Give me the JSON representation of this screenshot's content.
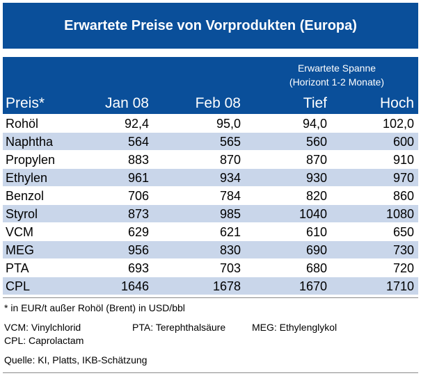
{
  "title": "Erwartete Preise von Vorprodukten (Europa)",
  "header": {
    "range_line1": "Erwartete Spanne",
    "range_line2": "(Horizont 1-2 Monate)",
    "col_name": "Preis*",
    "col_jan": "Jan 08",
    "col_feb": "Feb 08",
    "col_low": "Tief",
    "col_high": "Hoch"
  },
  "rows": [
    {
      "name": "Rohöl",
      "jan": "92,4",
      "feb": "95,0",
      "low": "94,0",
      "high": "102,0"
    },
    {
      "name": "Naphtha",
      "jan": "564",
      "feb": "565",
      "low": "560",
      "high": "600"
    },
    {
      "name": "Propylen",
      "jan": "883",
      "feb": "870",
      "low": "870",
      "high": "910"
    },
    {
      "name": "Ethylen",
      "jan": "961",
      "feb": "934",
      "low": "930",
      "high": "970"
    },
    {
      "name": "Benzol",
      "jan": "706",
      "feb": "784",
      "low": "820",
      "high": "860"
    },
    {
      "name": "Styrol",
      "jan": "873",
      "feb": "985",
      "low": "1040",
      "high": "1080"
    },
    {
      "name": "VCM",
      "jan": "629",
      "feb": "621",
      "low": "610",
      "high": "650"
    },
    {
      "name": "MEG",
      "jan": "956",
      "feb": "830",
      "low": "690",
      "high": "730"
    },
    {
      "name": "PTA",
      "jan": "693",
      "feb": "703",
      "low": "680",
      "high": "720"
    },
    {
      "name": "CPL",
      "jan": "1646",
      "feb": "1678",
      "low": "1670",
      "high": "1710"
    }
  ],
  "footnote": "* in EUR/t außer Rohöl (Brent) in USD/bbl",
  "abbreviations": {
    "vcm": "VCM: Vinylchlorid",
    "pta": "PTA: Terephthalsäure",
    "meg": "MEG: Ethylenglykol",
    "cpl": "CPL: Caprolactam"
  },
  "source": "Quelle: KI, Platts, IKB-Schätzung",
  "colors": {
    "header_blue": "#0a4f9a",
    "row_alt": "#c9d6ea"
  }
}
